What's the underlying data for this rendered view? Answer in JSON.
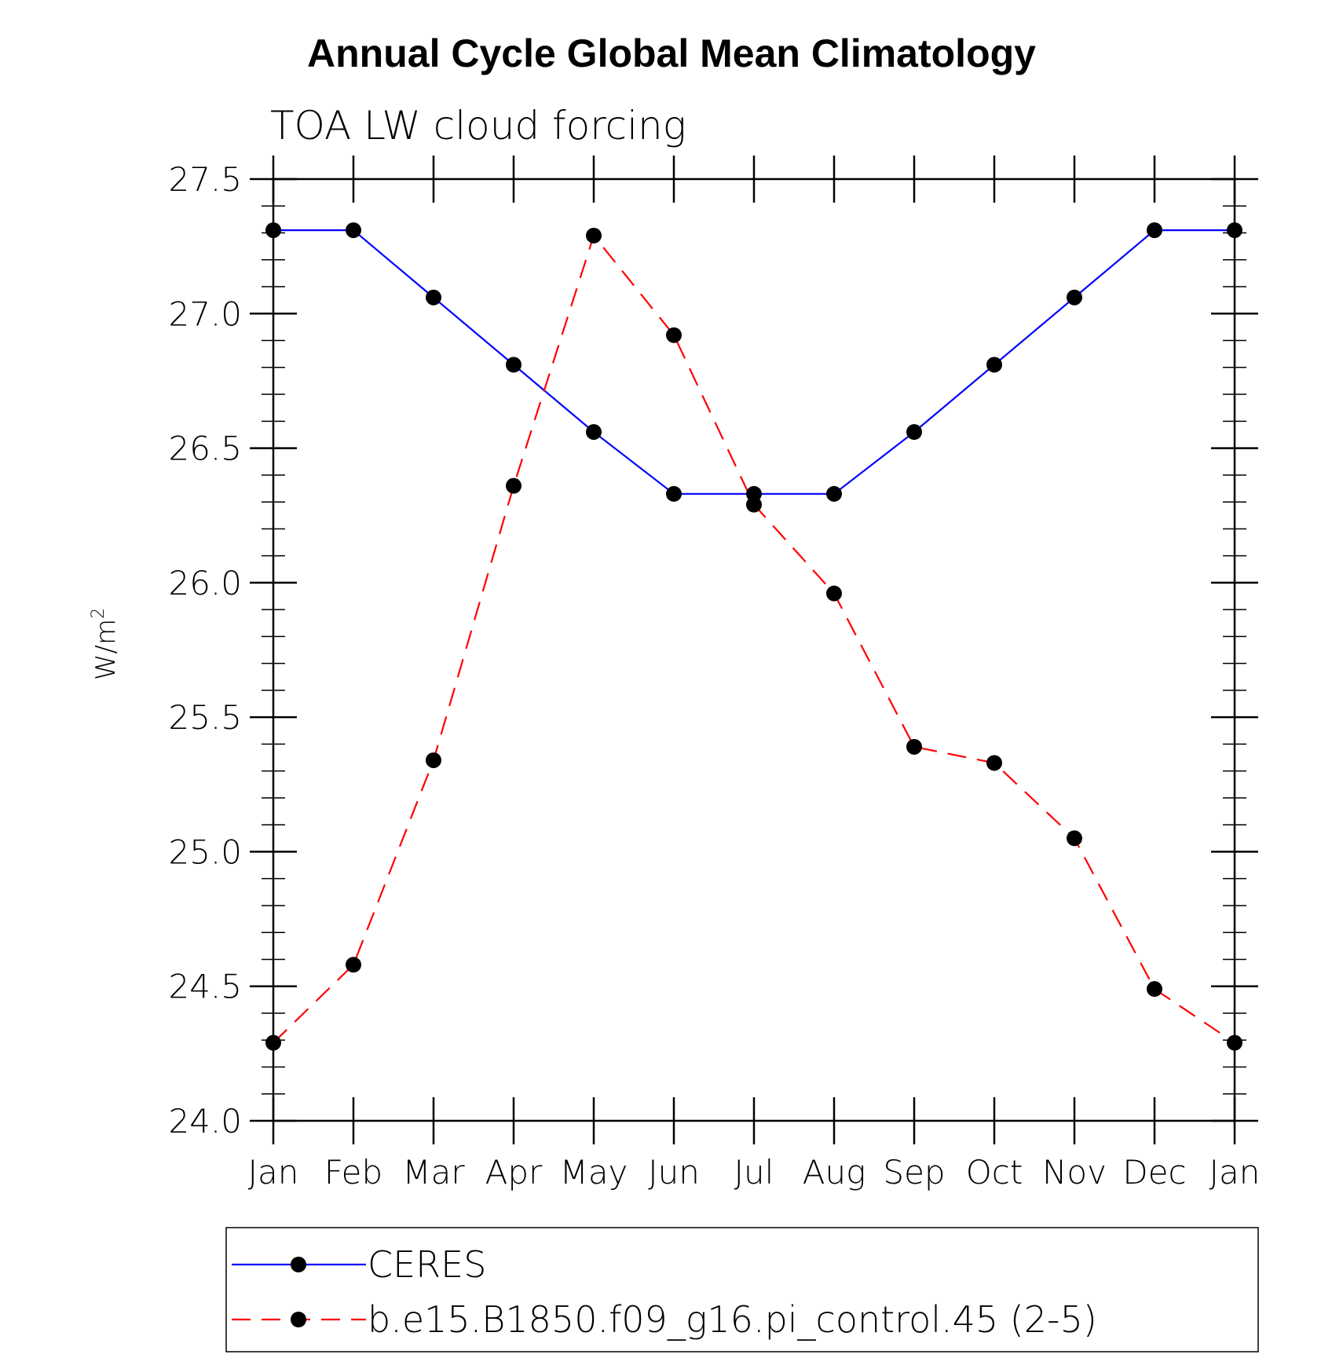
{
  "colors": {
    "ceres": "#0000ff",
    "model": "#ff0000",
    "marker": "#000000",
    "axis": "#000000"
  },
  "chart_data": {
    "type": "line",
    "title": "Annual Cycle Global Mean Climatology",
    "subtitle": "TOA LW cloud forcing",
    "ylabel": "W/m",
    "ylabel_superscript": "2",
    "xlabel": "",
    "categories": [
      "Jan",
      "Feb",
      "Mar",
      "Apr",
      "May",
      "Jun",
      "Jul",
      "Aug",
      "Sep",
      "Oct",
      "Nov",
      "Dec",
      "Jan"
    ],
    "ylim": [
      24.0,
      27.5
    ],
    "yticks": [
      "24.0",
      "24.5",
      "25.0",
      "25.5",
      "26.0",
      "26.5",
      "27.0",
      "27.5"
    ],
    "ytick_values": [
      24.0,
      24.5,
      25.0,
      25.5,
      26.0,
      26.5,
      27.0,
      27.5
    ],
    "y_minor_step": 0.1,
    "legend_position": "bottom",
    "series": [
      {
        "name": "CERES",
        "style": "solid",
        "color": "#0000ff",
        "values": [
          27.31,
          27.31,
          27.06,
          26.81,
          26.56,
          26.33,
          26.33,
          26.33,
          26.56,
          26.81,
          27.06,
          27.31,
          27.31
        ]
      },
      {
        "name": "b.e15.B1850.f09_g16.pi_control.45 (2-5)",
        "style": "dashed",
        "color": "#ff0000",
        "values": [
          24.29,
          24.58,
          25.34,
          26.36,
          27.29,
          26.92,
          26.29,
          25.96,
          25.39,
          25.33,
          25.05,
          24.49,
          24.29
        ]
      }
    ]
  }
}
